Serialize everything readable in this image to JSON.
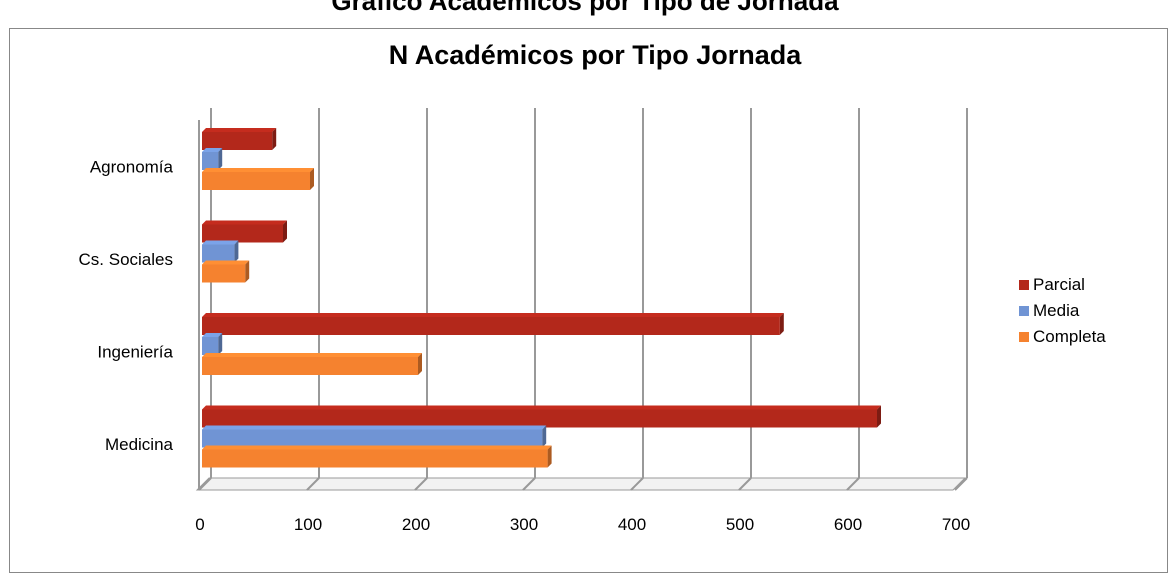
{
  "chart_data": {
    "type": "bar",
    "orientation": "horizontal",
    "top_title_fragment": "Gráfico        Académicos por Tipo de Jornada",
    "title": "N  Académicos por Tipo Jornada",
    "categories": [
      "Agronomía",
      "Cs. Sociales",
      "Ingeniería",
      "Medicina"
    ],
    "series": [
      {
        "name": "Parcial",
        "color": "#b3281b",
        "values": [
          65,
          75,
          535,
          625
        ]
      },
      {
        "name": "Media",
        "color": "#7094d4",
        "values": [
          15,
          30,
          15,
          315
        ]
      },
      {
        "name": "Completa",
        "color": "#f5822f",
        "values": [
          100,
          40,
          200,
          320
        ]
      }
    ],
    "x_ticks": [
      "0",
      "100",
      "200",
      "300",
      "400",
      "500",
      "600",
      "700"
    ],
    "xlim": [
      0,
      700
    ],
    "grid": true,
    "legend_position": "right",
    "style": "3d"
  }
}
